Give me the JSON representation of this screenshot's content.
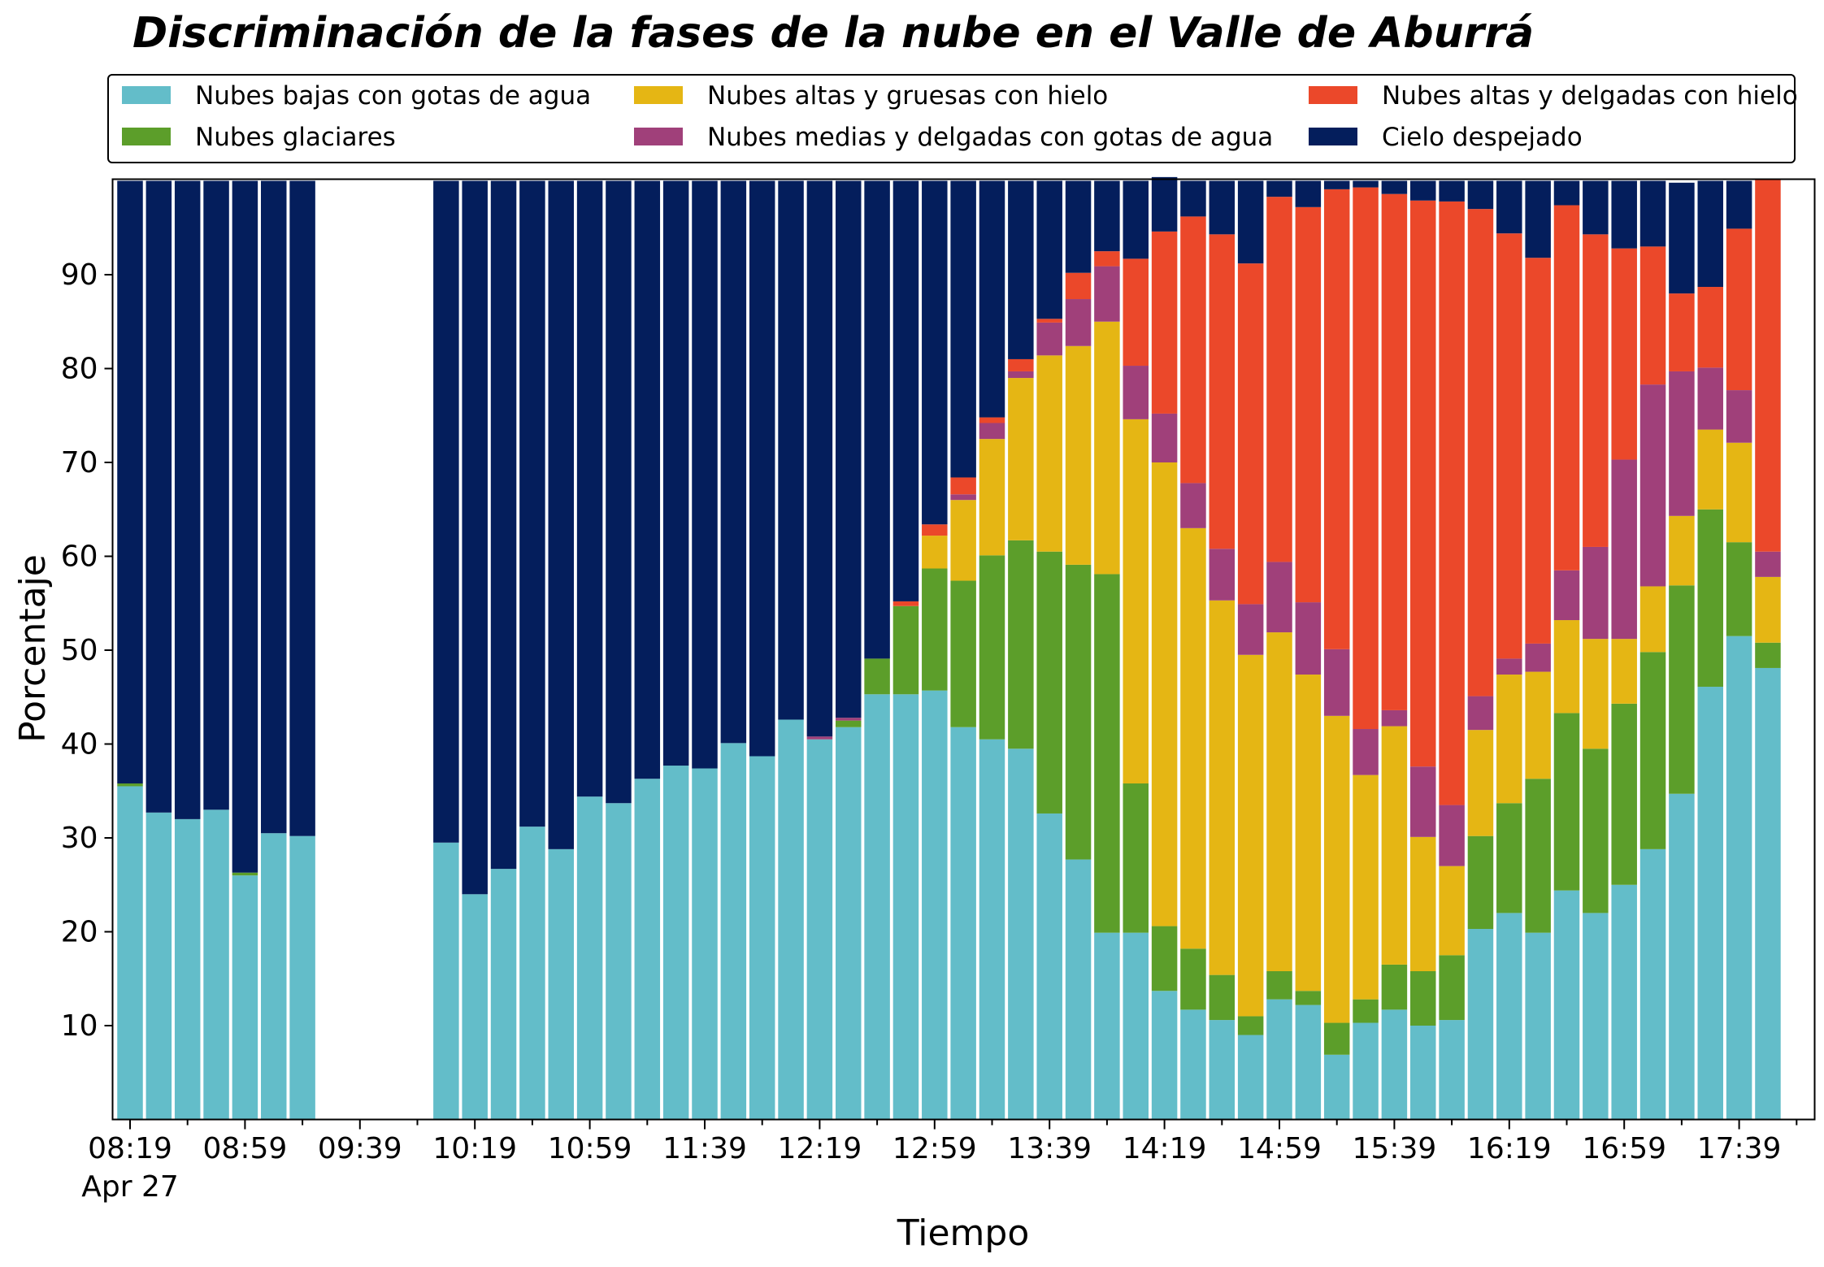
{
  "chart_data": {
    "type": "bar",
    "stacked": true,
    "title": "Discriminación de la fases de la nube en el Valle de Aburrá",
    "xlabel": "Tiempo",
    "ylabel": "Porcentaje",
    "ylim": [
      0,
      100
    ],
    "yticks": [
      10,
      20,
      30,
      40,
      50,
      60,
      70,
      80,
      90
    ],
    "xtick_labels": [
      "08:19",
      "08:59",
      "09:39",
      "10:19",
      "10:59",
      "11:39",
      "12:19",
      "12:59",
      "13:39",
      "14:19",
      "14:59",
      "15:39",
      "16:19",
      "16:59",
      "17:39"
    ],
    "xtick_sublabel": "Apr 27",
    "legend_position": "top",
    "x": [
      "08:19",
      "08:29",
      "08:39",
      "08:49",
      "08:59",
      "09:09",
      "09:19",
      "09:29",
      "09:39",
      "09:49",
      "09:59",
      "10:09",
      "10:19",
      "10:29",
      "10:39",
      "10:49",
      "10:59",
      "11:09",
      "11:19",
      "11:29",
      "11:39",
      "11:49",
      "11:59",
      "12:09",
      "12:19",
      "12:29",
      "12:39",
      "12:49",
      "12:59",
      "13:09",
      "13:19",
      "13:29",
      "13:39",
      "13:49",
      "13:59",
      "14:09",
      "14:19",
      "14:29",
      "14:39",
      "14:49",
      "14:59",
      "15:09",
      "15:19",
      "15:29",
      "15:39",
      "15:49",
      "15:59",
      "16:09",
      "16:19",
      "16:29",
      "16:39",
      "16:49",
      "16:59",
      "17:09",
      "17:19",
      "17:29",
      "17:39",
      "17:49"
    ],
    "series": [
      {
        "name": "Nubes bajas con gotas de agua",
        "color": "#63bdc9",
        "values": [
          35.5,
          32.7,
          32,
          33,
          26,
          30.5,
          30.2,
          null,
          null,
          null,
          null,
          29.5,
          24,
          26.7,
          31.2,
          28.8,
          34.4,
          33.7,
          36.3,
          37.7,
          37.4,
          40.1,
          38.7,
          42.6,
          40.5,
          41.8,
          45.3,
          45.3,
          45.7,
          41.8,
          40.5,
          39.5,
          32.6,
          27.7,
          19.9,
          19.9,
          13.7,
          11.7,
          10.6,
          9,
          12.8,
          12.2,
          6.9,
          10.3,
          11.7,
          10,
          10.6,
          20.3,
          22,
          19.9,
          24.4,
          22,
          25,
          28.8,
          34.7,
          46.1,
          51.5,
          48.1
        ]
      },
      {
        "name": "Nubes glaciares",
        "color": "#5c9e2a",
        "values": [
          0.3,
          0,
          0,
          0,
          0.3,
          0,
          0,
          null,
          null,
          null,
          null,
          0,
          0,
          0,
          0,
          0,
          0,
          0,
          0,
          0,
          0,
          0,
          0,
          0,
          0,
          0.7,
          3.8,
          9.4,
          13,
          15.6,
          19.6,
          22.2,
          27.9,
          31.4,
          38.2,
          15.9,
          6.9,
          6.5,
          4.8,
          2,
          3,
          1.5,
          3.4,
          2.5,
          4.8,
          5.8,
          6.9,
          9.9,
          11.7,
          16.4,
          18.9,
          17.5,
          19.3,
          21,
          22.2,
          18.9,
          10,
          2.7
        ]
      },
      {
        "name": "Nubes altas y gruesas con hielo",
        "color": "#e5b614",
        "values": [
          0,
          0,
          0,
          0,
          0,
          0,
          0,
          null,
          null,
          null,
          null,
          0,
          0,
          0,
          0,
          0,
          0,
          0,
          0,
          0,
          0,
          0,
          0,
          0,
          0,
          0,
          0,
          0,
          3.5,
          8.6,
          12.4,
          17.3,
          20.9,
          23.3,
          26.9,
          38.8,
          49.4,
          44.8,
          39.9,
          38.5,
          36.1,
          33.7,
          32.7,
          23.9,
          25.4,
          14.3,
          9.5,
          11.3,
          13.7,
          11.4,
          9.9,
          11.7,
          6.9,
          7,
          7.4,
          8.5,
          10.6,
          7
        ]
      },
      {
        "name": "Nubes medias y delgadas con gotas de agua",
        "color": "#a0407a",
        "values": [
          0,
          0,
          0,
          0,
          0,
          0,
          0,
          null,
          null,
          null,
          null,
          0,
          0,
          0,
          0,
          0,
          0,
          0,
          0,
          0,
          0,
          0,
          0,
          0,
          0.3,
          0.3,
          0,
          0,
          0,
          0.6,
          1.7,
          0.7,
          3.5,
          5,
          5.9,
          5.7,
          5.2,
          4.8,
          5.5,
          5.4,
          7.5,
          7.7,
          7.1,
          4.9,
          1.7,
          7.5,
          6.5,
          3.6,
          1.7,
          3,
          5.3,
          9.8,
          19.1,
          21.5,
          15.4,
          6.6,
          5.6,
          2.7
        ]
      },
      {
        "name": "Nubes altas y delgadas con hielo",
        "color": "#eb482a",
        "values": [
          0,
          0,
          0,
          0,
          0,
          0,
          0,
          null,
          null,
          null,
          null,
          0,
          0,
          0,
          0,
          0,
          0,
          0,
          0,
          0,
          0,
          0,
          0,
          0,
          0,
          0,
          0,
          0.5,
          1.2,
          1.8,
          0.6,
          1.3,
          0.4,
          2.8,
          1.6,
          11.4,
          19.4,
          28.4,
          33.5,
          36.3,
          38.9,
          42.1,
          49,
          57.7,
          55,
          60.3,
          64.3,
          51.9,
          45.3,
          41.1,
          38.9,
          33.3,
          22.5,
          14.7,
          8.3,
          8.6,
          17.2,
          39.6
        ]
      },
      {
        "name": "Cielo despejado",
        "color": "#041e5c",
        "values": [
          64.2,
          67.3,
          68,
          67,
          73.7,
          69.5,
          69.8,
          null,
          null,
          null,
          null,
          70.5,
          76,
          73.3,
          68.8,
          71.2,
          65.6,
          66.3,
          63.7,
          62.3,
          62.6,
          59.9,
          61.3,
          57.4,
          59.2,
          57.2,
          50.9,
          44.8,
          36.6,
          31.6,
          25.2,
          19,
          14.7,
          9.8,
          7.5,
          8.3,
          5.8,
          3.8,
          5.7,
          8.8,
          1.7,
          2.8,
          0.9,
          0.7,
          1.4,
          2.1,
          2.2,
          3,
          5.6,
          8.2,
          2.6,
          5.7,
          7.2,
          7,
          11.8,
          11.3,
          5.1,
          0
        ]
      }
    ]
  }
}
